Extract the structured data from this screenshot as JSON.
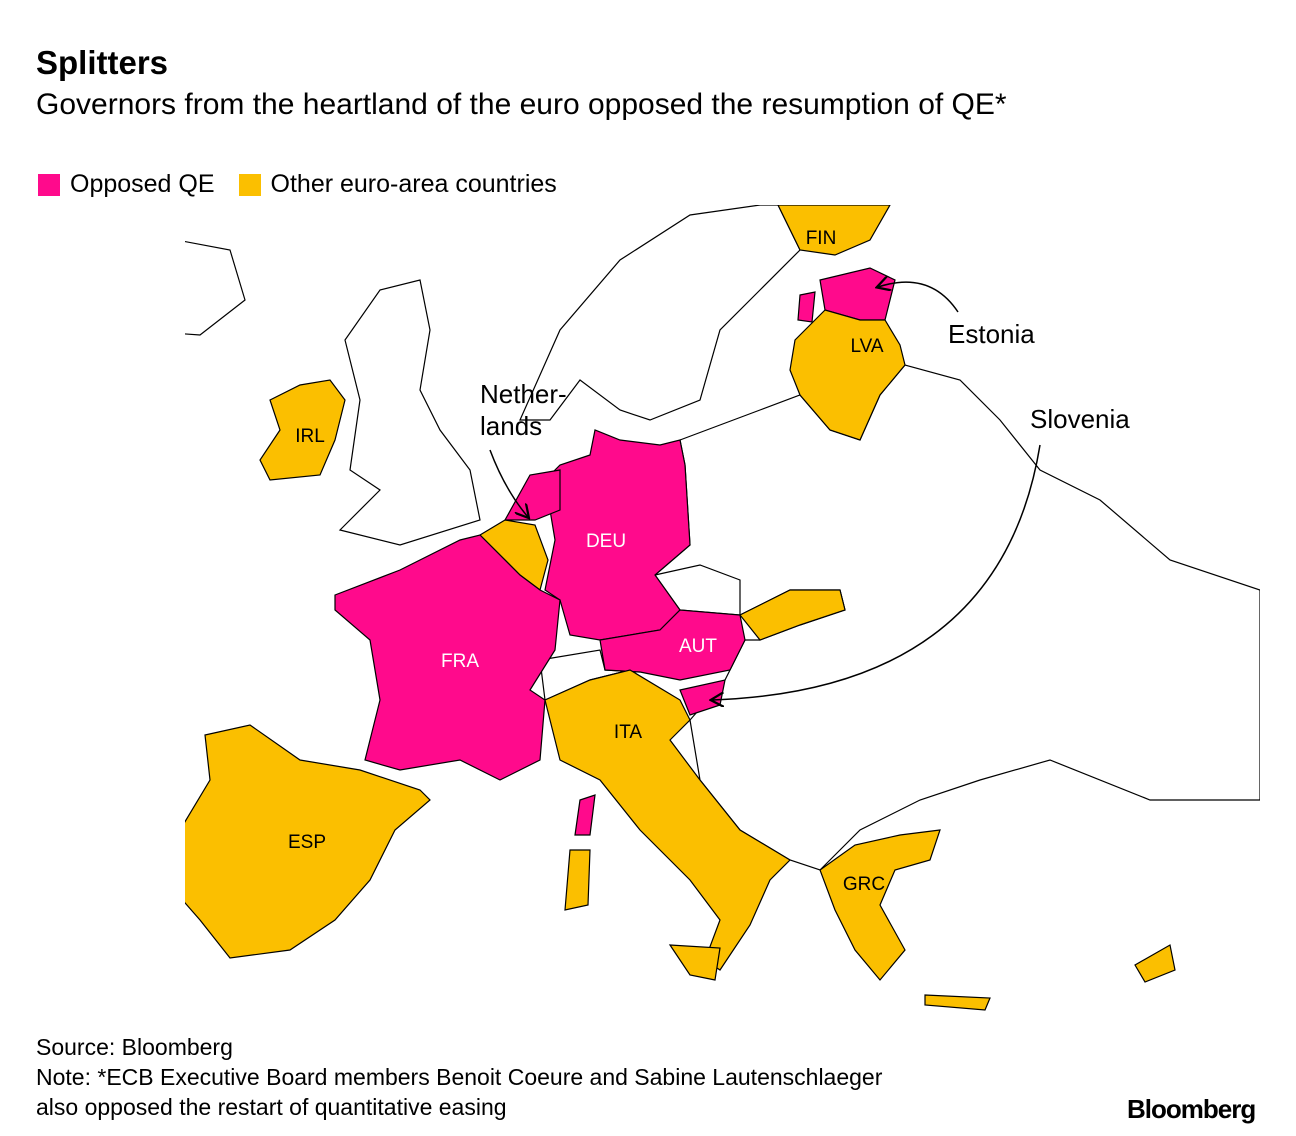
{
  "header": {
    "title": "Splitters",
    "subtitle": "Governors from the heartland of the euro opposed the resumption of QE*"
  },
  "legend": [
    {
      "label": "Opposed QE",
      "color": "#ff0a8c"
    },
    {
      "label": "Other euro-area countries",
      "color": "#fbbf00"
    }
  ],
  "map": {
    "labels": [
      "FIN",
      "LVA",
      "IRL",
      "DEU",
      "FRA",
      "AUT",
      "ITA",
      "ESP",
      "GRC"
    ],
    "annotations": {
      "netherlands": [
        "Nether-",
        "lands"
      ],
      "estonia": "Estonia",
      "slovenia": "Slovenia"
    }
  },
  "footer": {
    "source": "Source: Bloomberg",
    "note": [
      "Note: *ECB Executive Board members Benoit Coeure and Sabine Lautenschlaeger",
      "also opposed the restart of quantitative easing"
    ],
    "logo": "Bloomberg"
  }
}
